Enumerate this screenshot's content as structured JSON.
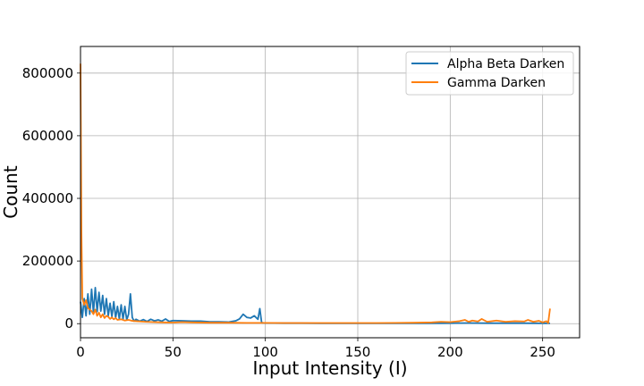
{
  "chart_data": {
    "type": "line",
    "xlabel": "Input Intensity (I)",
    "ylabel": "Count",
    "xlim": [
      0,
      270
    ],
    "ylim": [
      -45000,
      885000
    ],
    "xticks": [
      0,
      50,
      100,
      150,
      200,
      250
    ],
    "yticks": [
      0,
      200000,
      400000,
      600000,
      800000
    ],
    "grid": true,
    "legend_position": "top-right",
    "series": [
      {
        "name": "Alpha Beta Darken",
        "color": "#1f77b4",
        "x": [
          0,
          1,
          2,
          3,
          4,
          5,
          6,
          7,
          8,
          9,
          10,
          11,
          12,
          13,
          14,
          15,
          16,
          17,
          18,
          19,
          20,
          21,
          22,
          23,
          24,
          25,
          26,
          27,
          28,
          29,
          30,
          32,
          34,
          36,
          38,
          40,
          42,
          44,
          46,
          48,
          50,
          55,
          60,
          65,
          70,
          75,
          80,
          84,
          86,
          88,
          90,
          92,
          94,
          96,
          97,
          98,
          100,
          110,
          120,
          130,
          140,
          150,
          160,
          170,
          180,
          190,
          200,
          210,
          220,
          230,
          240,
          250,
          253,
          254
        ],
        "y": [
          70000,
          20000,
          80000,
          25000,
          95000,
          30000,
          110000,
          35000,
          115000,
          38000,
          100000,
          40000,
          90000,
          30000,
          80000,
          25000,
          65000,
          22000,
          70000,
          18000,
          55000,
          15000,
          60000,
          14000,
          55000,
          12000,
          30000,
          95000,
          20000,
          8000,
          14000,
          8000,
          13000,
          7000,
          14000,
          9000,
          12000,
          8000,
          15000,
          7000,
          10000,
          9000,
          8000,
          8000,
          6000,
          6000,
          5000,
          9000,
          15000,
          30000,
          20000,
          18000,
          25000,
          14000,
          48000,
          3000,
          2000,
          1500,
          1500,
          1000,
          1000,
          1000,
          1000,
          1000,
          1000,
          1000,
          1500,
          2000,
          1500,
          1500,
          1500,
          1000,
          1000,
          1000
        ]
      },
      {
        "name": "Gamma Darken",
        "color": "#ff7f0e",
        "x": [
          0,
          0.5,
          1,
          2,
          3,
          4,
          5,
          6,
          7,
          8,
          9,
          10,
          11,
          12,
          13,
          14,
          15,
          16,
          17,
          18,
          19,
          20,
          22,
          24,
          26,
          28,
          30,
          35,
          40,
          45,
          50,
          55,
          60,
          70,
          80,
          90,
          100,
          110,
          120,
          130,
          140,
          150,
          160,
          170,
          180,
          190,
          195,
          200,
          205,
          208,
          210,
          212,
          215,
          217,
          220,
          225,
          230,
          235,
          240,
          242,
          245,
          248,
          250,
          252,
          253,
          254
        ],
        "y": [
          830000,
          300000,
          80000,
          60000,
          75000,
          50000,
          45000,
          40000,
          30000,
          45000,
          25000,
          35000,
          20000,
          30000,
          18000,
          25000,
          22000,
          15000,
          20000,
          14000,
          18000,
          12000,
          14000,
          10000,
          12000,
          9000,
          8000,
          6000,
          5000,
          4000,
          3500,
          5000,
          4000,
          3000,
          3000,
          2500,
          2500,
          2000,
          2000,
          2000,
          2000,
          2000,
          2000,
          2500,
          3000,
          4000,
          6000,
          5000,
          8000,
          12000,
          6000,
          10000,
          7000,
          15000,
          6000,
          10000,
          6000,
          8000,
          7000,
          12000,
          6000,
          9000,
          4000,
          8000,
          2000,
          48000
        ]
      }
    ]
  }
}
